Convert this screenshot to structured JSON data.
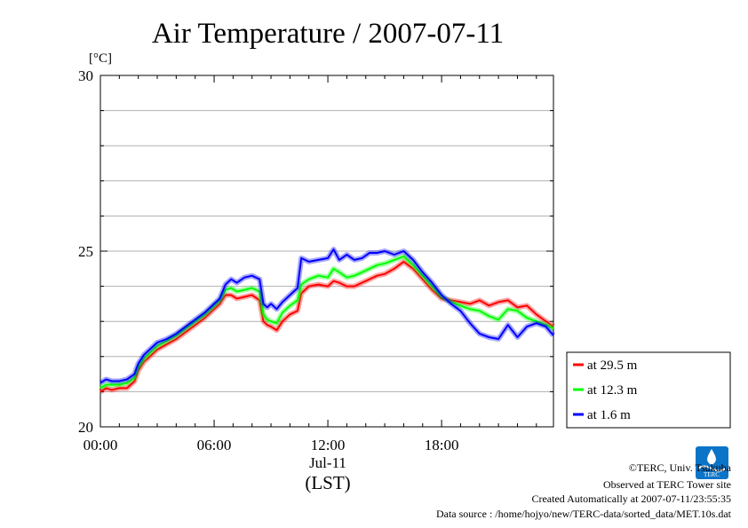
{
  "chart_data": {
    "type": "line",
    "title": "Air Temperature / 2007-07-11",
    "ylabel": "[°C]",
    "ylim": [
      20,
      30
    ],
    "y_ticks": [
      "20",
      "25",
      "30"
    ],
    "xlim": [
      0,
      23.9
    ],
    "x_ticks": [
      {
        "value": 0,
        "label": "00:00"
      },
      {
        "value": 6,
        "label": "06:00"
      },
      {
        "value": 12,
        "label": "12:00"
      },
      {
        "value": 18,
        "label": "18:00"
      }
    ],
    "x_date_label": "Jul-11",
    "x_timezone_label": "(LST)",
    "grid": "horizontal",
    "legend_position": "lower-right outside",
    "series": [
      {
        "name": "at 29.5 m",
        "color": "#ff0000",
        "x": [
          0,
          0.3,
          0.6,
          1,
          1.4,
          1.8,
          2,
          2.3,
          2.6,
          3,
          3.5,
          4,
          4.5,
          5,
          5.5,
          6,
          6.3,
          6.6,
          6.9,
          7.2,
          7.6,
          8,
          8.4,
          8.6,
          8.8,
          9,
          9.3,
          9.6,
          10,
          10.4,
          10.6,
          11,
          11.5,
          12,
          12.3,
          12.6,
          13,
          13.4,
          13.8,
          14.2,
          14.6,
          15,
          15.5,
          16,
          16.5,
          17,
          17.5,
          18,
          18.5,
          19,
          19.5,
          20,
          20.5,
          21,
          21.5,
          22,
          22.5,
          23,
          23.5,
          23.9
        ],
        "y": [
          21.0,
          21.1,
          21.05,
          21.1,
          21.1,
          21.3,
          21.6,
          21.85,
          22.0,
          22.2,
          22.35,
          22.5,
          22.7,
          22.9,
          23.1,
          23.35,
          23.5,
          23.75,
          23.75,
          23.65,
          23.7,
          23.75,
          23.6,
          23.0,
          22.9,
          22.85,
          22.75,
          23.0,
          23.2,
          23.3,
          23.8,
          24.0,
          24.05,
          24.0,
          24.15,
          24.1,
          24.0,
          24.0,
          24.1,
          24.2,
          24.3,
          24.35,
          24.5,
          24.7,
          24.5,
          24.2,
          23.9,
          23.65,
          23.6,
          23.55,
          23.5,
          23.6,
          23.45,
          23.55,
          23.6,
          23.4,
          23.45,
          23.2,
          23.0,
          22.85
        ]
      },
      {
        "name": "at 12.3 m",
        "color": "#00ff00",
        "x": [
          0,
          0.3,
          0.6,
          1,
          1.4,
          1.8,
          2,
          2.3,
          2.6,
          3,
          3.5,
          4,
          4.5,
          5,
          5.5,
          6,
          6.3,
          6.6,
          6.9,
          7.2,
          7.6,
          8,
          8.4,
          8.6,
          8.8,
          9,
          9.3,
          9.6,
          10,
          10.4,
          10.6,
          11,
          11.5,
          12,
          12.3,
          12.6,
          13,
          13.4,
          13.8,
          14.2,
          14.6,
          15,
          15.5,
          16,
          16.5,
          17,
          17.5,
          18,
          18.5,
          19,
          19.5,
          20,
          20.5,
          21,
          21.5,
          22,
          22.5,
          23,
          23.5,
          23.9
        ],
        "y": [
          21.1,
          21.2,
          21.2,
          21.2,
          21.25,
          21.4,
          21.7,
          21.95,
          22.1,
          22.3,
          22.45,
          22.6,
          22.8,
          23.0,
          23.2,
          23.45,
          23.6,
          23.9,
          23.95,
          23.85,
          23.9,
          23.95,
          23.85,
          23.2,
          23.05,
          23.0,
          22.95,
          23.25,
          23.45,
          23.6,
          24.05,
          24.2,
          24.3,
          24.25,
          24.5,
          24.4,
          24.25,
          24.3,
          24.4,
          24.5,
          24.6,
          24.65,
          24.75,
          24.85,
          24.6,
          24.3,
          24.0,
          23.7,
          23.55,
          23.45,
          23.35,
          23.3,
          23.15,
          23.05,
          23.35,
          23.3,
          23.1,
          23.0,
          22.9,
          22.8
        ]
      },
      {
        "name": "at 1.6 m",
        "color": "#0000ff",
        "x": [
          0,
          0.3,
          0.6,
          1,
          1.4,
          1.8,
          2,
          2.3,
          2.6,
          3,
          3.5,
          4,
          4.5,
          5,
          5.5,
          6,
          6.3,
          6.6,
          6.9,
          7.2,
          7.6,
          8,
          8.4,
          8.6,
          8.8,
          9,
          9.3,
          9.6,
          10,
          10.4,
          10.6,
          11,
          11.5,
          12,
          12.3,
          12.6,
          13,
          13.4,
          13.8,
          14.2,
          14.6,
          15,
          15.5,
          16,
          16.5,
          17,
          17.5,
          18,
          18.5,
          19,
          19.5,
          20,
          20.5,
          21,
          21.5,
          22,
          22.5,
          23,
          23.5,
          23.9
        ],
        "y": [
          21.25,
          21.35,
          21.3,
          21.3,
          21.35,
          21.5,
          21.8,
          22.05,
          22.2,
          22.4,
          22.5,
          22.65,
          22.85,
          23.05,
          23.25,
          23.5,
          23.65,
          24.05,
          24.2,
          24.1,
          24.25,
          24.3,
          24.2,
          23.5,
          23.4,
          23.5,
          23.35,
          23.55,
          23.75,
          23.95,
          24.8,
          24.7,
          24.75,
          24.8,
          25.05,
          24.75,
          24.9,
          24.75,
          24.8,
          24.95,
          24.95,
          25.0,
          24.9,
          25.0,
          24.75,
          24.4,
          24.1,
          23.75,
          23.5,
          23.3,
          22.95,
          22.65,
          22.55,
          22.5,
          22.9,
          22.55,
          22.85,
          22.95,
          22.85,
          22.6
        ]
      }
    ]
  },
  "credits": {
    "copyright": "©TERC, Univ. Tsukuba",
    "site": "Observed at TERC Tower site",
    "created": "Created Automatically at 2007-07-11/23:55:35",
    "source": "Data source : /home/hojyo/new/TERC-data/sorted_data/MET.10s.dat",
    "logo_text": "TERC"
  }
}
